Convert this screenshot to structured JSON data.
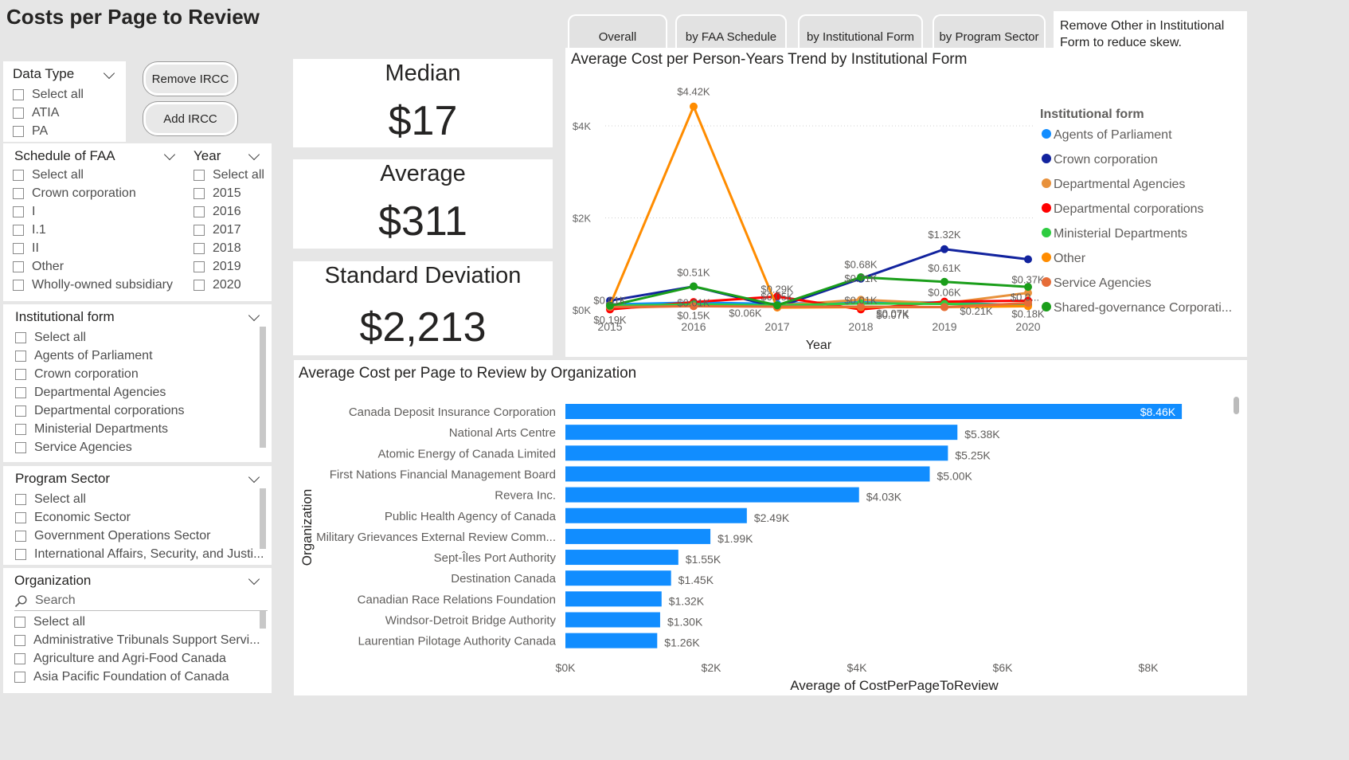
{
  "title": "Costs per Page to Review",
  "buttons": {
    "remove_ircc": "Remove IRCC",
    "add_ircc": "Add IRCC"
  },
  "slicers": {
    "data_type": {
      "title": "Data Type",
      "options": [
        "Select all",
        "ATIA",
        "PA"
      ]
    },
    "schedule_faa": {
      "title": "Schedule of FAA",
      "options": [
        "Select all",
        "Crown corporation",
        "I",
        "I.1",
        "II",
        "Other",
        "Wholly-owned subsidiary"
      ]
    },
    "year": {
      "title": "Year",
      "options": [
        "Select all",
        "2015",
        "2016",
        "2017",
        "2018",
        "2019",
        "2020"
      ]
    },
    "institutional_form": {
      "title": "Institutional form",
      "options": [
        "Select all",
        "Agents of Parliament",
        "Crown corporation",
        "Departmental Agencies",
        "Departmental corporations",
        "Ministerial Departments",
        "Service Agencies"
      ]
    },
    "program_sector": {
      "title": "Program Sector",
      "options": [
        "Select all",
        "Economic Sector",
        "Government Operations Sector",
        "International Affairs, Security, and Justi..."
      ]
    },
    "organization": {
      "title": "Organization",
      "search_placeholder": "Search",
      "options": [
        "Select all",
        "Administrative Tribunals Support Servi...",
        "Agriculture and Agri-Food Canada",
        "Asia Pacific Foundation of Canada"
      ]
    }
  },
  "cards": {
    "median": {
      "label": "Median",
      "value": "$17"
    },
    "average": {
      "label": "Average",
      "value": "$311"
    },
    "std": {
      "label": "Standard Deviation",
      "value": "$2,213"
    }
  },
  "tabs": [
    "Overall",
    "by FAA Schedule",
    "by Institutional Form",
    "by Program Sector"
  ],
  "note": "Remove Other in Institutional Form to reduce skew.",
  "colors": {
    "bar": "#118dff",
    "series": [
      "#118dff",
      "#12239e",
      "#e8913b",
      "#ff0000",
      "#2ecc40",
      "#ff8c00",
      "#e66c37",
      "#1a9e1a"
    ]
  },
  "chart_data": [
    {
      "type": "line",
      "title": "Average Cost per Person-Years Trend by Institutional Form",
      "xlabel": "Year",
      "ylabel": "",
      "x": [
        2015,
        2016,
        2017,
        2018,
        2019,
        2020
      ],
      "x_ticks": [
        "2015",
        "2016",
        "2017",
        "2018",
        "2019",
        "2020"
      ],
      "ylim": [
        0,
        4600
      ],
      "y_ticks": [
        "$0K",
        "$2K",
        "$4K"
      ],
      "legend_title": "Institutional form",
      "legend_position": "right",
      "series": [
        {
          "name": "Agents of Parliament",
          "values": [
            120,
            160,
            130,
            180,
            160,
            100
          ]
        },
        {
          "name": "Crown corporation",
          "values": [
            200,
            510,
            60,
            680,
            1320,
            1100
          ]
        },
        {
          "name": "Departmental Agencies",
          "values": [
            40,
            90,
            100,
            220,
            140,
            370
          ]
        },
        {
          "name": "Departmental corporations",
          "values": [
            10,
            170,
            290,
            10,
            180,
            200
          ]
        },
        {
          "name": "Ministerial Departments",
          "values": [
            90,
            120,
            100,
            140,
            130,
            110
          ]
        },
        {
          "name": "Other",
          "values": [
            100,
            4420,
            50,
            60,
            60,
            80
          ]
        },
        {
          "name": "Service Agencies",
          "values": [
            60,
            80,
            70,
            70,
            60,
            150
          ]
        },
        {
          "name": "Shared-governance Corporati...",
          "values": [
            90,
            510,
            100,
            710,
            610,
            500
          ]
        }
      ],
      "data_labels": [
        "$4.42K",
        "$1.32K",
        "$0.68K",
        "$0.61K",
        "$0.51K",
        "$0.37K",
        "$0.29K",
        "$0.71K",
        "$0.01K",
        "$0.01K",
        "$0.19K",
        "$0.15K",
        "$0.06K",
        "$0.05K",
        "$0.07K",
        "$0.07K",
        "$0.06K",
        "$0.21K",
        "$0.18K",
        "$0.01K",
        "$0.0..."
      ]
    },
    {
      "type": "bar",
      "orientation": "horizontal",
      "title": "Average Cost per Page to Review by Organization",
      "xlabel": "Average of CostPerPageToReview",
      "ylabel": "Organization",
      "xlim": [
        0,
        8500
      ],
      "x_ticks": [
        "$0K",
        "$2K",
        "$4K",
        "$6K",
        "$8K"
      ],
      "categories": [
        "Canada Deposit Insurance Corporation",
        "National Arts Centre",
        "Atomic Energy of Canada Limited",
        "First Nations Financial Management Board",
        "Revera Inc.",
        "Public Health Agency of Canada",
        "Military Grievances External Review Comm...",
        "Sept-Îles Port Authority",
        "Destination Canada",
        "Canadian Race Relations Foundation",
        "Windsor-Detroit Bridge Authority",
        "Laurentian Pilotage Authority Canada"
      ],
      "values": [
        8460,
        5380,
        5250,
        5000,
        4030,
        2490,
        1990,
        1550,
        1450,
        1320,
        1300,
        1260
      ],
      "labels": [
        "$8.46K",
        "$5.38K",
        "$5.25K",
        "$5.00K",
        "$4.03K",
        "$2.49K",
        "$1.99K",
        "$1.55K",
        "$1.45K",
        "$1.32K",
        "$1.30K",
        "$1.26K"
      ]
    }
  ]
}
